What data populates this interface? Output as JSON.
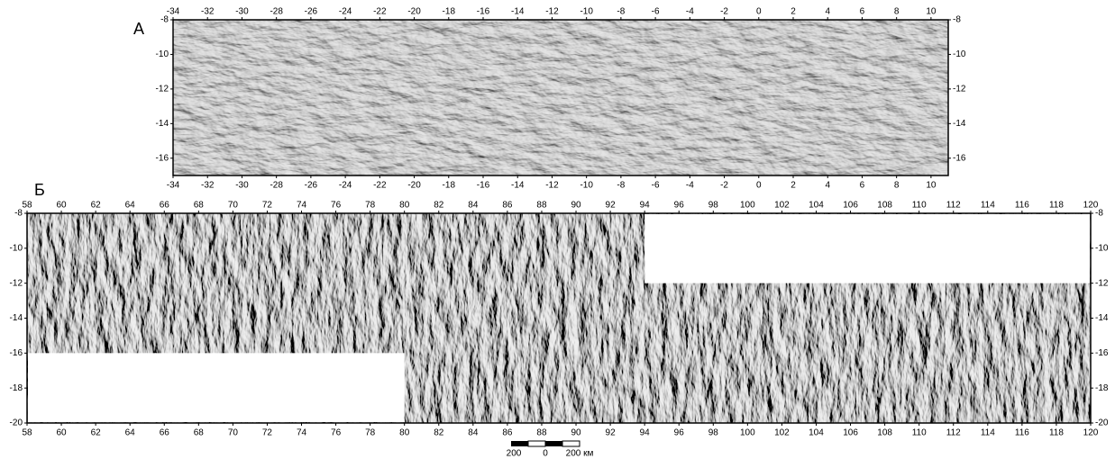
{
  "panels": [
    {
      "label": "А",
      "xlim": [
        -34,
        11
      ],
      "ylim": [
        -8,
        -17
      ],
      "xticks": [
        -34,
        -32,
        -30,
        -28,
        -26,
        -24,
        -22,
        -20,
        -18,
        -16,
        -14,
        -12,
        -10,
        -8,
        -6,
        -4,
        -2,
        0,
        2,
        4,
        6,
        8,
        10
      ],
      "yticks": [
        -8,
        -10,
        -12,
        -14,
        -16
      ]
    },
    {
      "label": "Б",
      "xlim": [
        58,
        120
      ],
      "ylim": [
        -8,
        -20
      ],
      "xticks": [
        58,
        60,
        62,
        64,
        66,
        68,
        70,
        72,
        74,
        76,
        78,
        80,
        82,
        84,
        86,
        88,
        90,
        92,
        94,
        96,
        98,
        100,
        102,
        104,
        106,
        108,
        110,
        112,
        114,
        116,
        118,
        120
      ],
      "yticks": [
        -8,
        -10,
        -12,
        -14,
        -16,
        -18,
        -20
      ]
    }
  ],
  "scale_bar": {
    "labels": [
      "200",
      "0",
      "200 км"
    ]
  }
}
